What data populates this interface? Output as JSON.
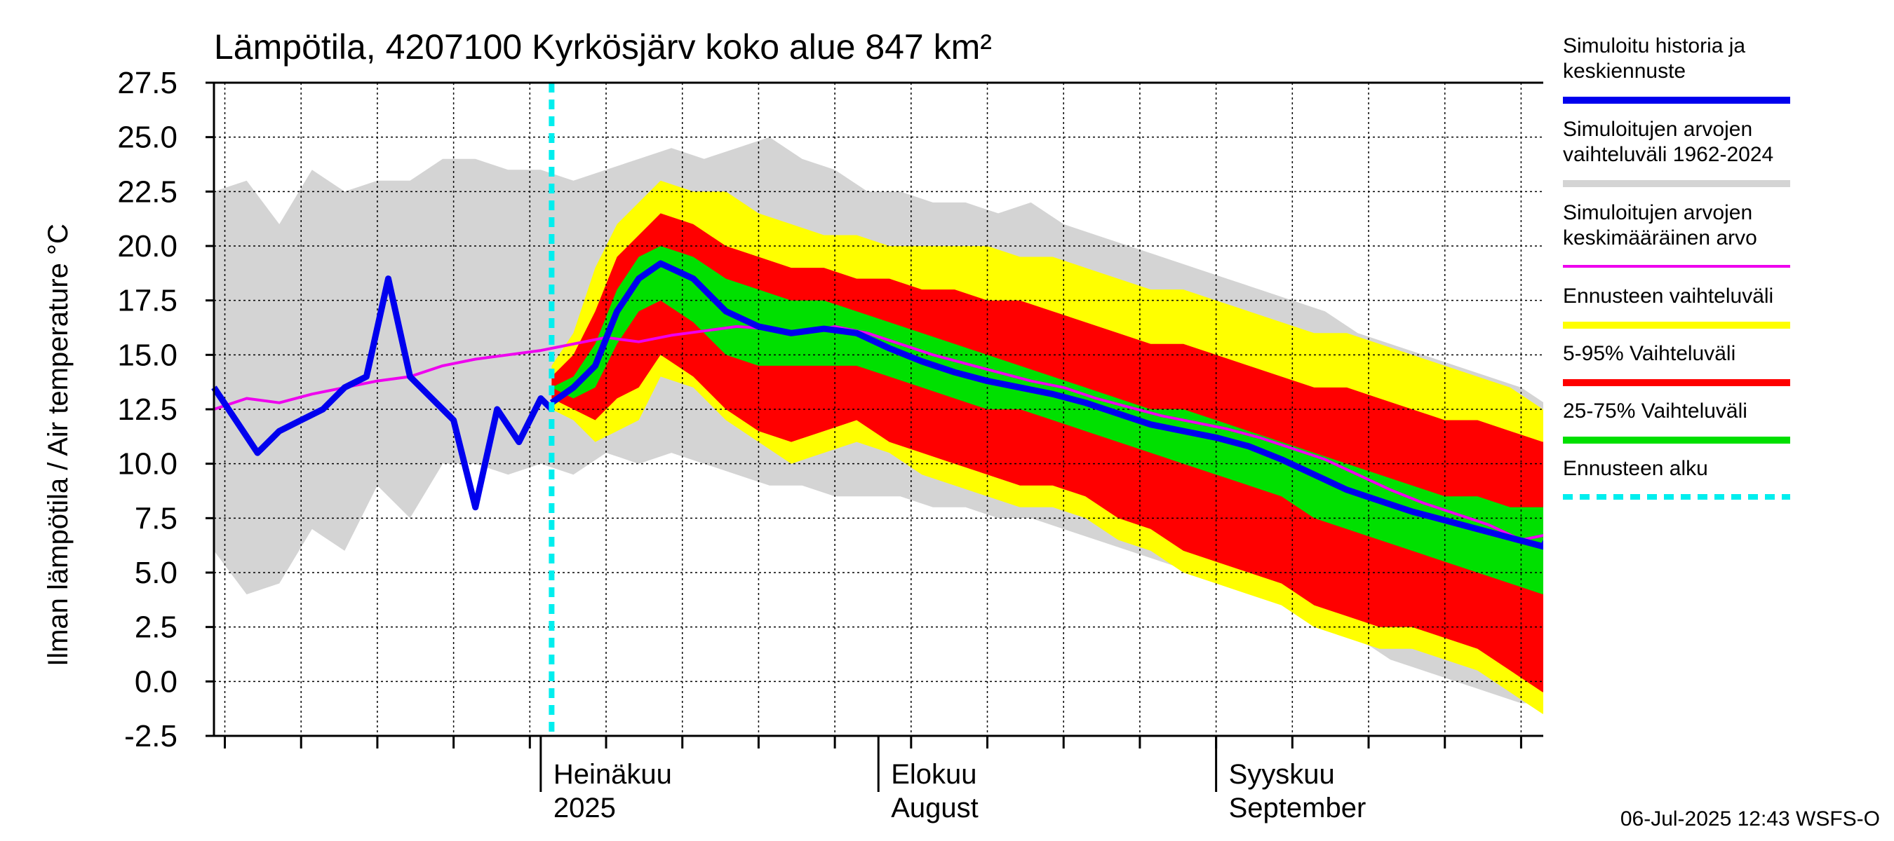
{
  "chart_data": {
    "type": "area",
    "title": "Lämpötila, 4207100 Kyrkösjärv koko alue 847 km²",
    "ylabel": "Ilman lämpötila / Air temperature    °C",
    "ylim": [
      -2.5,
      27.5
    ],
    "yticks": [
      "27.5",
      "25.0",
      "22.5",
      "20.0",
      "17.5",
      "15.0",
      "12.5",
      "10.0",
      "7.5",
      "5.0",
      "2.5",
      "0.0",
      "-2.5"
    ],
    "xlim": [
      "2025-06-01",
      "2025-10-02"
    ],
    "month_labels": [
      {
        "date": "2025-07-01",
        "line1": "Heinäkuu",
        "line2": "2025"
      },
      {
        "date": "2025-08-01",
        "line1": "Elokuu",
        "line2": "August"
      },
      {
        "date": "2025-09-01",
        "line1": "Syyskuu",
        "line2": "September"
      }
    ],
    "forecast_start": "2025-07-02",
    "colors": {
      "history": "#0000ee",
      "hist_range": "#d4d4d4",
      "hist_mean": "#ee00ee",
      "ens_range": "#ffff00",
      "p5_95": "#ff0000",
      "p25_75": "#00e000",
      "forecast_start": "#00eeee"
    },
    "series": {
      "hist_range": {
        "x": [
          "2025-06-01",
          "2025-06-04",
          "2025-06-07",
          "2025-06-10",
          "2025-06-13",
          "2025-06-16",
          "2025-06-19",
          "2025-06-22",
          "2025-06-25",
          "2025-06-28",
          "2025-07-01",
          "2025-07-04",
          "2025-07-07",
          "2025-07-10",
          "2025-07-13",
          "2025-07-16",
          "2025-07-19",
          "2025-07-22",
          "2025-07-25",
          "2025-07-28",
          "2025-07-31",
          "2025-08-03",
          "2025-08-06",
          "2025-08-09",
          "2025-08-12",
          "2025-08-15",
          "2025-08-18",
          "2025-08-21",
          "2025-08-24",
          "2025-08-27",
          "2025-08-30",
          "2025-09-02",
          "2025-09-05",
          "2025-09-08",
          "2025-09-11",
          "2025-09-14",
          "2025-09-17",
          "2025-09-20",
          "2025-09-23",
          "2025-09-26",
          "2025-09-29",
          "2025-10-02"
        ],
        "low": [
          6.0,
          4.0,
          4.5,
          7.0,
          6.0,
          9.0,
          7.5,
          10.0,
          10.0,
          9.5,
          10.0,
          9.5,
          10.5,
          10.0,
          10.5,
          10.0,
          9.5,
          9.0,
          9.0,
          8.5,
          8.5,
          8.5,
          8.0,
          8.0,
          7.5,
          7.5,
          7.0,
          6.5,
          6.0,
          5.5,
          5.0,
          4.5,
          4.0,
          3.5,
          3.0,
          2.0,
          1.0,
          0.5,
          0.0,
          -0.5,
          -1.0,
          -1.0
        ],
        "high": [
          22.5,
          23.0,
          21.0,
          23.5,
          22.5,
          23.0,
          23.0,
          24.0,
          24.0,
          23.5,
          23.5,
          23.0,
          23.5,
          24.0,
          24.5,
          24.0,
          24.5,
          25.0,
          24.0,
          23.5,
          22.5,
          22.5,
          22.0,
          22.0,
          21.5,
          22.0,
          21.0,
          20.5,
          20.0,
          19.5,
          19.0,
          18.5,
          18.0,
          17.5,
          17.0,
          16.0,
          15.5,
          15.0,
          14.5,
          14.0,
          13.5,
          12.5
        ]
      },
      "ensemble": {
        "x": [
          "2025-07-02",
          "2025-07-04",
          "2025-07-06",
          "2025-07-08",
          "2025-07-10",
          "2025-07-12",
          "2025-07-15",
          "2025-07-18",
          "2025-07-21",
          "2025-07-24",
          "2025-07-27",
          "2025-07-30",
          "2025-08-02",
          "2025-08-05",
          "2025-08-08",
          "2025-08-11",
          "2025-08-14",
          "2025-08-17",
          "2025-08-20",
          "2025-08-23",
          "2025-08-26",
          "2025-08-29",
          "2025-09-01",
          "2025-09-04",
          "2025-09-07",
          "2025-09-10",
          "2025-09-13",
          "2025-09-16",
          "2025-09-19",
          "2025-09-22",
          "2025-09-25",
          "2025-09-28",
          "2025-10-01",
          "2025-10-02"
        ],
        "min": [
          12.5,
          12.0,
          11.0,
          11.5,
          12.0,
          14.0,
          13.5,
          12.0,
          11.0,
          10.0,
          10.5,
          11.0,
          10.5,
          9.5,
          9.0,
          8.5,
          8.0,
          8.0,
          7.5,
          6.5,
          6.0,
          5.0,
          4.5,
          4.0,
          3.5,
          2.5,
          2.0,
          1.5,
          1.5,
          1.0,
          0.5,
          -0.5,
          -1.5,
          -0.5
        ],
        "p5": [
          13.0,
          12.5,
          12.0,
          13.0,
          13.5,
          15.0,
          14.0,
          12.5,
          11.5,
          11.0,
          11.5,
          12.0,
          11.0,
          10.5,
          10.0,
          9.5,
          9.0,
          9.0,
          8.5,
          7.5,
          7.0,
          6.0,
          5.5,
          5.0,
          4.5,
          3.5,
          3.0,
          2.5,
          2.5,
          2.0,
          1.5,
          0.5,
          -0.5,
          0.5
        ],
        "p25": [
          13.5,
          13.0,
          13.5,
          15.5,
          17.0,
          17.5,
          16.5,
          15.0,
          14.5,
          14.5,
          14.5,
          14.5,
          14.0,
          13.5,
          13.0,
          12.5,
          12.5,
          12.0,
          11.5,
          11.0,
          10.5,
          10.0,
          9.5,
          9.0,
          8.5,
          7.5,
          7.0,
          6.5,
          6.0,
          5.5,
          5.0,
          4.5,
          4.0,
          5.0
        ],
        "p75": [
          13.5,
          14.0,
          15.5,
          18.0,
          19.5,
          20.0,
          19.5,
          18.5,
          18.0,
          17.5,
          17.5,
          17.0,
          16.5,
          16.0,
          15.5,
          15.0,
          14.5,
          14.0,
          13.5,
          13.0,
          12.5,
          12.5,
          12.0,
          11.5,
          11.0,
          10.5,
          10.0,
          9.5,
          9.0,
          8.5,
          8.5,
          8.0,
          8.0,
          9.5
        ],
        "p95": [
          14.0,
          15.0,
          17.0,
          19.5,
          20.5,
          21.5,
          21.0,
          20.0,
          19.5,
          19.0,
          19.0,
          18.5,
          18.5,
          18.0,
          18.0,
          17.5,
          17.5,
          17.0,
          16.5,
          16.0,
          15.5,
          15.5,
          15.0,
          14.5,
          14.0,
          13.5,
          13.5,
          13.0,
          12.5,
          12.0,
          12.0,
          11.5,
          11.0,
          11.5
        ],
        "max": [
          14.5,
          16.0,
          19.0,
          21.0,
          22.0,
          23.0,
          22.5,
          22.5,
          21.5,
          21.0,
          20.5,
          20.5,
          20.0,
          20.0,
          20.0,
          20.0,
          19.5,
          19.5,
          19.0,
          18.5,
          18.0,
          18.0,
          17.5,
          17.0,
          16.5,
          16.0,
          16.0,
          15.5,
          15.0,
          14.5,
          14.0,
          13.5,
          12.5,
          12.5
        ]
      },
      "hist_mean": {
        "x": [
          "2025-06-01",
          "2025-06-04",
          "2025-06-07",
          "2025-06-10",
          "2025-06-13",
          "2025-06-16",
          "2025-06-19",
          "2025-06-22",
          "2025-06-25",
          "2025-06-28",
          "2025-07-01",
          "2025-07-04",
          "2025-07-07",
          "2025-07-10",
          "2025-07-13",
          "2025-07-16",
          "2025-07-19",
          "2025-07-22",
          "2025-07-25",
          "2025-07-28",
          "2025-07-31",
          "2025-08-03",
          "2025-08-06",
          "2025-08-09",
          "2025-08-12",
          "2025-08-15",
          "2025-08-18",
          "2025-08-21",
          "2025-08-24",
          "2025-08-27",
          "2025-08-30",
          "2025-09-02",
          "2025-09-05",
          "2025-09-08",
          "2025-09-11",
          "2025-09-14",
          "2025-09-17",
          "2025-09-20",
          "2025-09-23",
          "2025-09-26",
          "2025-09-29",
          "2025-10-02"
        ],
        "y": [
          12.5,
          13.0,
          12.8,
          13.2,
          13.5,
          13.8,
          14.0,
          14.5,
          14.8,
          15.0,
          15.2,
          15.5,
          15.8,
          15.6,
          15.9,
          16.1,
          16.3,
          16.2,
          16.0,
          16.3,
          16.0,
          15.5,
          15.0,
          14.6,
          14.2,
          13.8,
          13.5,
          13.0,
          12.6,
          12.2,
          11.9,
          11.6,
          11.2,
          10.7,
          10.2,
          9.5,
          8.8,
          8.2,
          7.7,
          7.2,
          6.5,
          6.8
        ]
      },
      "history": {
        "x": [
          "2025-06-01",
          "2025-06-03",
          "2025-06-05",
          "2025-06-07",
          "2025-06-09",
          "2025-06-11",
          "2025-06-13",
          "2025-06-15",
          "2025-06-17",
          "2025-06-19",
          "2025-06-21",
          "2025-06-23",
          "2025-06-25",
          "2025-06-27",
          "2025-06-29",
          "2025-07-01",
          "2025-07-02"
        ],
        "y": [
          13.5,
          12.0,
          10.5,
          11.5,
          12.0,
          12.5,
          13.5,
          14.0,
          18.5,
          14.0,
          13.0,
          12.0,
          8.0,
          12.5,
          11.0,
          13.0,
          12.5
        ]
      },
      "median": {
        "x": [
          "2025-07-02",
          "2025-07-04",
          "2025-07-06",
          "2025-07-08",
          "2025-07-10",
          "2025-07-12",
          "2025-07-15",
          "2025-07-18",
          "2025-07-21",
          "2025-07-24",
          "2025-07-27",
          "2025-07-30",
          "2025-08-02",
          "2025-08-05",
          "2025-08-08",
          "2025-08-11",
          "2025-08-14",
          "2025-08-17",
          "2025-08-20",
          "2025-08-23",
          "2025-08-26",
          "2025-08-29",
          "2025-09-01",
          "2025-09-04",
          "2025-09-07",
          "2025-09-10",
          "2025-09-13",
          "2025-09-16",
          "2025-09-19",
          "2025-09-22",
          "2025-09-25",
          "2025-09-28",
          "2025-10-01",
          "2025-10-02"
        ],
        "y": [
          12.8,
          13.5,
          14.5,
          17.0,
          18.5,
          19.2,
          18.5,
          17.0,
          16.3,
          16.0,
          16.2,
          16.0,
          15.3,
          14.7,
          14.2,
          13.8,
          13.5,
          13.2,
          12.8,
          12.3,
          11.8,
          11.5,
          11.2,
          10.8,
          10.2,
          9.5,
          8.8,
          8.3,
          7.8,
          7.4,
          7.0,
          6.6,
          6.2,
          7.0
        ]
      }
    }
  },
  "legend": [
    {
      "key": "history",
      "label": "Simuloitu historia ja\nkeskiennuste",
      "style": "line"
    },
    {
      "key": "hist_range",
      "label": "Simuloitujen arvojen\nvaihteluväli 1962-2024",
      "style": "line"
    },
    {
      "key": "hist_mean",
      "label": "Simuloitujen arvojen\nkeskimääräinen arvo",
      "style": "thin"
    },
    {
      "key": "ens_range",
      "label": "Ennusteen vaihteluväli",
      "style": "line"
    },
    {
      "key": "p5_95",
      "label": "5-95% Vaihteluväli",
      "style": "line"
    },
    {
      "key": "p25_75",
      "label": "25-75% Vaihteluväli",
      "style": "line"
    },
    {
      "key": "forecast_start",
      "label": "Ennusteen alku",
      "style": "dashed"
    }
  ],
  "footer": "06-Jul-2025 12:43 WSFS-O"
}
